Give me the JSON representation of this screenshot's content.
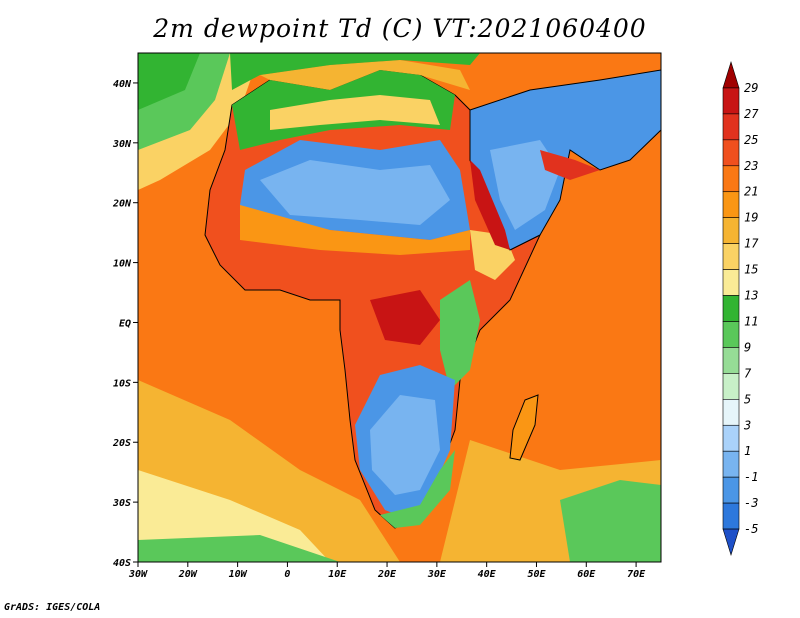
{
  "title": "2m dewpoint Td (C) VT:2021060400",
  "credit": "GrADS: IGES/COLA",
  "map": {
    "lon_range": [
      -30,
      75
    ],
    "lat_range": [
      -40,
      45
    ],
    "lon_ticks": [
      {
        "value": -30,
        "label": "30W"
      },
      {
        "value": -20,
        "label": "20W"
      },
      {
        "value": -10,
        "label": "10W"
      },
      {
        "value": 0,
        "label": "0"
      },
      {
        "value": 10,
        "label": "10E"
      },
      {
        "value": 20,
        "label": "20E"
      },
      {
        "value": 30,
        "label": "30E"
      },
      {
        "value": 40,
        "label": "40E"
      },
      {
        "value": 50,
        "label": "50E"
      },
      {
        "value": 60,
        "label": "60E"
      },
      {
        "value": 70,
        "label": "70E"
      }
    ],
    "lat_ticks": [
      {
        "value": 40,
        "label": "40N"
      },
      {
        "value": 30,
        "label": "30N"
      },
      {
        "value": 20,
        "label": "20N"
      },
      {
        "value": 10,
        "label": "10N"
      },
      {
        "value": 0,
        "label": "EQ"
      },
      {
        "value": -10,
        "label": "10S"
      },
      {
        "value": -20,
        "label": "20S"
      },
      {
        "value": -30,
        "label": "30S"
      },
      {
        "value": -40,
        "label": "40S"
      }
    ]
  },
  "colorbar": {
    "labels": [
      "29",
      "27",
      "25",
      "23",
      "21",
      "19",
      "17",
      "15",
      "13",
      "11",
      "9",
      "7",
      "5",
      "3",
      "1",
      "-1",
      "-3",
      "-5"
    ],
    "colors": [
      "#a00000",
      "#c81414",
      "#e1321e",
      "#f0501e",
      "#fa7814",
      "#fa9614",
      "#f5b432",
      "#fad264",
      "#faeb96",
      "#32b432",
      "#5ac85a",
      "#96dc96",
      "#c8f0c8",
      "#e6f5fa",
      "#aad2fa",
      "#78b4f0",
      "#4b96e6",
      "#2d78dc",
      "#1e50c8"
    ]
  }
}
